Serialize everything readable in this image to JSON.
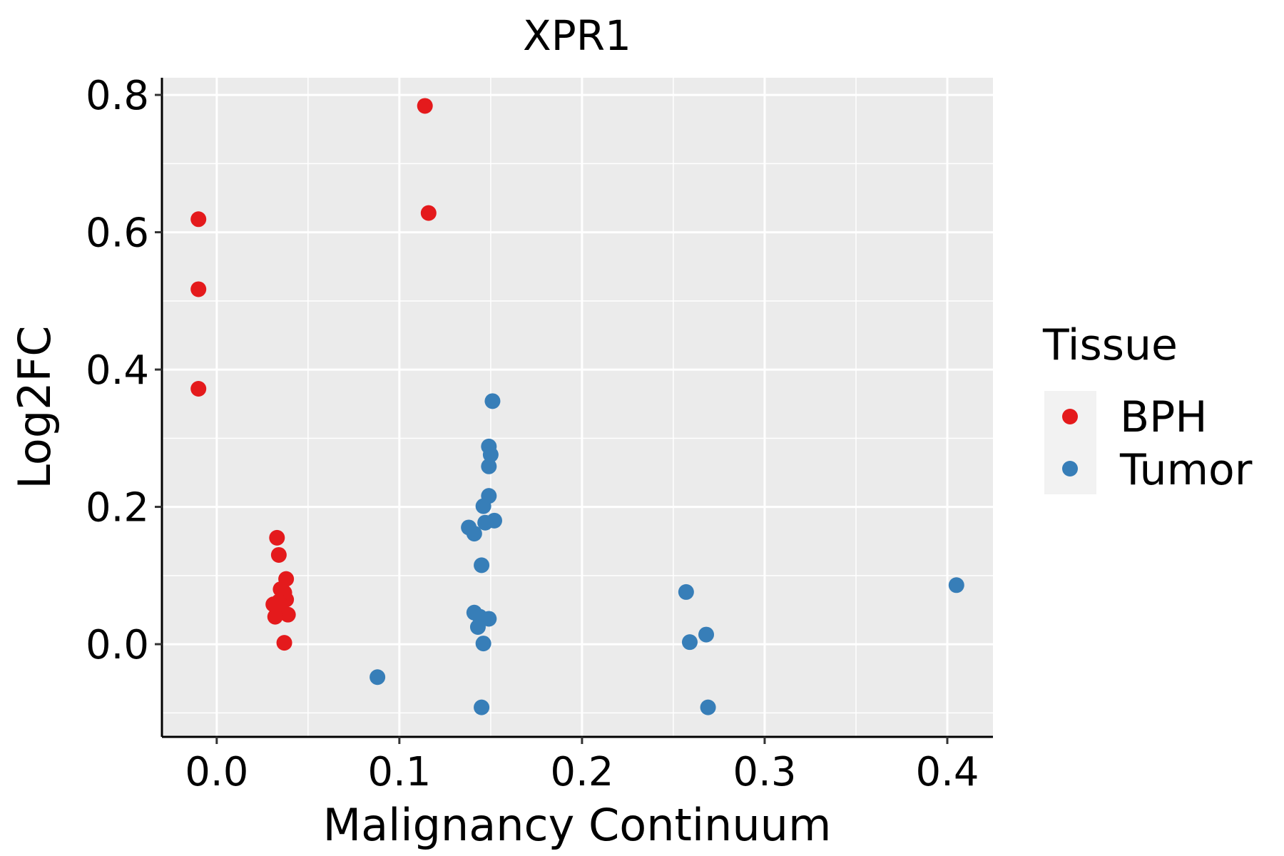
{
  "chart_data": {
    "type": "scatter",
    "title": "XPR1",
    "xlabel": "Malignancy Continuum",
    "ylabel": "Log2FC",
    "xlim": [
      -0.03,
      0.425
    ],
    "ylim": [
      -0.135,
      0.825
    ],
    "x_ticks": [
      0.0,
      0.1,
      0.2,
      0.3,
      0.4
    ],
    "x_tick_labels": [
      "0.0",
      "0.1",
      "0.2",
      "0.3",
      "0.4"
    ],
    "y_ticks": [
      0.0,
      0.2,
      0.4,
      0.6,
      0.8
    ],
    "y_tick_labels": [
      "0.0",
      "0.2",
      "0.4",
      "0.6",
      "0.8"
    ],
    "grid": true,
    "legend": {
      "title": "Tissue",
      "position": "right"
    },
    "series": [
      {
        "name": "BPH",
        "color": "#E41A1C",
        "points": [
          {
            "x": -0.01,
            "y": 0.619
          },
          {
            "x": -0.01,
            "y": 0.517
          },
          {
            "x": -0.01,
            "y": 0.372
          },
          {
            "x": 0.114,
            "y": 0.784
          },
          {
            "x": 0.116,
            "y": 0.628
          },
          {
            "x": 0.033,
            "y": 0.155
          },
          {
            "x": 0.034,
            "y": 0.13
          },
          {
            "x": 0.038,
            "y": 0.095
          },
          {
            "x": 0.035,
            "y": 0.08
          },
          {
            "x": 0.037,
            "y": 0.075
          },
          {
            "x": 0.038,
            "y": 0.065
          },
          {
            "x": 0.034,
            "y": 0.062
          },
          {
            "x": 0.031,
            "y": 0.058
          },
          {
            "x": 0.035,
            "y": 0.05
          },
          {
            "x": 0.039,
            "y": 0.043
          },
          {
            "x": 0.032,
            "y": 0.04
          },
          {
            "x": 0.037,
            "y": 0.002
          }
        ]
      },
      {
        "name": "Tumor",
        "color": "#377EB8",
        "points": [
          {
            "x": 0.151,
            "y": 0.354
          },
          {
            "x": 0.149,
            "y": 0.288
          },
          {
            "x": 0.15,
            "y": 0.276
          },
          {
            "x": 0.149,
            "y": 0.259
          },
          {
            "x": 0.149,
            "y": 0.216
          },
          {
            "x": 0.146,
            "y": 0.201
          },
          {
            "x": 0.152,
            "y": 0.18
          },
          {
            "x": 0.147,
            "y": 0.177
          },
          {
            "x": 0.138,
            "y": 0.17
          },
          {
            "x": 0.141,
            "y": 0.161
          },
          {
            "x": 0.145,
            "y": 0.115
          },
          {
            "x": 0.141,
            "y": 0.046
          },
          {
            "x": 0.144,
            "y": 0.04
          },
          {
            "x": 0.149,
            "y": 0.037
          },
          {
            "x": 0.143,
            "y": 0.025
          },
          {
            "x": 0.146,
            "y": 0.001
          },
          {
            "x": 0.088,
            "y": -0.048
          },
          {
            "x": 0.145,
            "y": -0.092
          },
          {
            "x": 0.257,
            "y": 0.076
          },
          {
            "x": 0.259,
            "y": 0.003
          },
          {
            "x": 0.268,
            "y": 0.014
          },
          {
            "x": 0.269,
            "y": -0.092
          },
          {
            "x": 0.405,
            "y": 0.086
          }
        ]
      }
    ]
  }
}
